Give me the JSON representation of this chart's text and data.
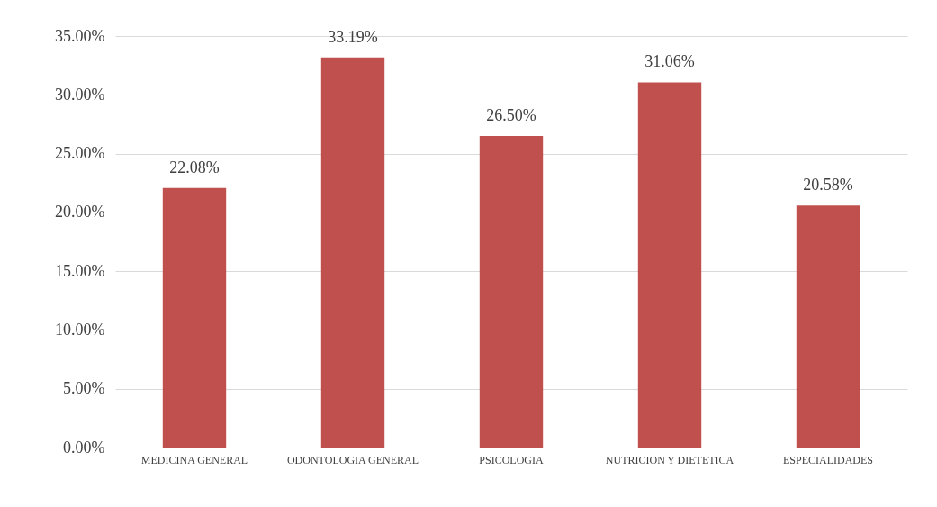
{
  "chart_data": {
    "type": "bar",
    "categories": [
      "MEDICINA GENERAL",
      "ODONTOLOGIA GENERAL",
      "PSICOLOGIA",
      "NUTRICION Y DIETETICA",
      "ESPECIALIDADES"
    ],
    "values": [
      22.08,
      33.19,
      26.5,
      31.06,
      20.58
    ],
    "value_labels": [
      "22.08%",
      "33.19%",
      "26.50%",
      "31.06%",
      "20.58%"
    ],
    "color": "#c0504d",
    "ylim": [
      0,
      35
    ],
    "yticks": [
      {
        "value": 0,
        "label": "0.00%"
      },
      {
        "value": 5,
        "label": "5.00%"
      },
      {
        "value": 10,
        "label": "10.00%"
      },
      {
        "value": 15,
        "label": "15.00%"
      },
      {
        "value": 20,
        "label": "20.00%"
      },
      {
        "value": 25,
        "label": "25.00%"
      },
      {
        "value": 30,
        "label": "30.00%"
      },
      {
        "value": 35,
        "label": "35.00%"
      }
    ],
    "grid": "y"
  }
}
